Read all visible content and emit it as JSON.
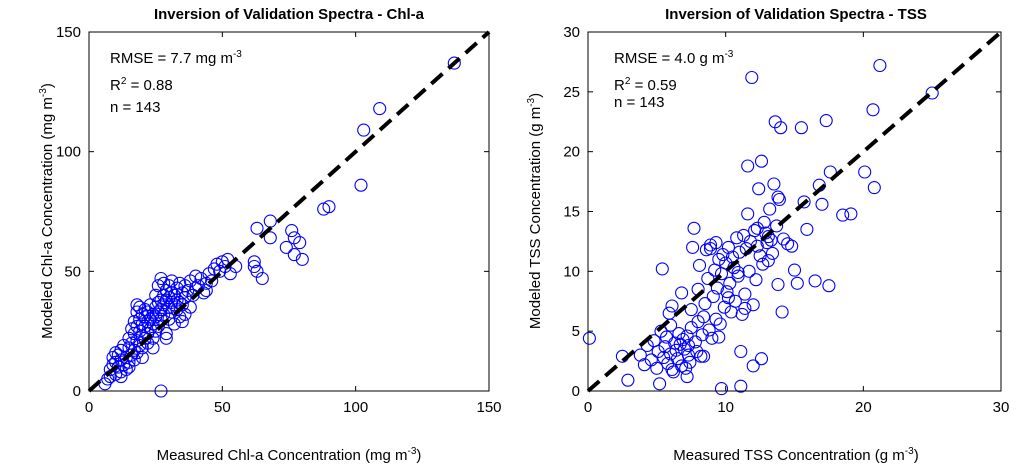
{
  "chart_data": [
    {
      "type": "scatter",
      "title": "Inversion of Validation Spectra - Chl-a",
      "xlabel": "Measured Chl-a Concentration (mg m",
      "xlabel_sup": "-3",
      "xlabel_end": ")",
      "ylabel": "Modeled Chl-a Concentration (mg m",
      "ylabel_sup": "-3",
      "ylabel_end": ")",
      "xlim": [
        0,
        150
      ],
      "ylim": [
        0,
        150
      ],
      "xticks": [
        0,
        50,
        100,
        150
      ],
      "yticks": [
        0,
        50,
        100,
        150
      ],
      "reference_line": [
        [
          0,
          0
        ],
        [
          150,
          150
        ]
      ],
      "stats": {
        "rmse": "RMSE = 7.7 mg m",
        "rmse_sup": "-3",
        "r2_prefix": "R",
        "r2_sup": "2",
        "r2_value": " = 0.88",
        "n": "n = 143"
      },
      "points": [
        [
          6,
          3
        ],
        [
          7,
          5
        ],
        [
          8,
          6
        ],
        [
          8,
          9
        ],
        [
          9,
          11
        ],
        [
          9,
          14
        ],
        [
          10,
          7
        ],
        [
          10,
          12
        ],
        [
          10,
          16
        ],
        [
          11,
          10
        ],
        [
          11,
          15
        ],
        [
          12,
          8
        ],
        [
          12,
          13
        ],
        [
          12,
          17
        ],
        [
          13,
          11
        ],
        [
          13,
          19
        ],
        [
          14,
          9
        ],
        [
          14,
          14
        ],
        [
          15,
          12
        ],
        [
          15,
          18
        ],
        [
          15,
          22
        ],
        [
          16,
          15
        ],
        [
          16,
          20
        ],
        [
          16,
          26
        ],
        [
          17,
          13
        ],
        [
          17,
          17
        ],
        [
          17,
          24
        ],
        [
          17,
          29
        ],
        [
          18,
          16
        ],
        [
          18,
          21
        ],
        [
          18,
          27
        ],
        [
          18,
          33
        ],
        [
          18,
          36
        ],
        [
          19,
          19
        ],
        [
          19,
          25
        ],
        [
          19,
          30
        ],
        [
          19,
          35
        ],
        [
          20,
          14
        ],
        [
          20,
          18
        ],
        [
          20,
          23
        ],
        [
          20,
          28
        ],
        [
          20,
          32
        ],
        [
          21,
          22
        ],
        [
          21,
          27
        ],
        [
          21,
          31
        ],
        [
          21,
          34
        ],
        [
          22,
          24
        ],
        [
          22,
          29
        ],
        [
          22,
          33
        ],
        [
          23,
          26
        ],
        [
          23,
          30
        ],
        [
          23,
          36
        ],
        [
          24,
          28
        ],
        [
          24,
          32
        ],
        [
          24,
          22
        ],
        [
          25,
          25
        ],
        [
          25,
          31
        ],
        [
          25,
          35
        ],
        [
          25,
          40
        ],
        [
          26,
          27
        ],
        [
          26,
          33
        ],
        [
          26,
          37
        ],
        [
          26,
          44
        ],
        [
          27,
          30
        ],
        [
          27,
          34
        ],
        [
          27,
          38
        ],
        [
          27,
          47
        ],
        [
          27,
          0
        ],
        [
          28,
          32
        ],
        [
          28,
          36
        ],
        [
          28,
          40
        ],
        [
          28,
          45
        ],
        [
          29,
          24
        ],
        [
          29,
          22
        ],
        [
          29,
          38
        ],
        [
          29,
          42
        ],
        [
          30,
          30
        ],
        [
          30,
          35
        ],
        [
          30,
          39
        ],
        [
          30,
          44
        ],
        [
          31,
          33
        ],
        [
          31,
          37
        ],
        [
          31,
          41
        ],
        [
          31,
          46
        ],
        [
          32,
          28
        ],
        [
          32,
          36
        ],
        [
          32,
          40
        ],
        [
          33,
          34
        ],
        [
          33,
          38
        ],
        [
          33,
          43
        ],
        [
          34,
          31
        ],
        [
          34,
          37
        ],
        [
          34,
          45
        ],
        [
          35,
          36
        ],
        [
          35,
          41
        ],
        [
          35,
          29
        ],
        [
          36,
          39
        ],
        [
          36,
          44
        ],
        [
          37,
          42
        ],
        [
          38,
          46
        ],
        [
          38,
          35
        ],
        [
          39,
          40
        ],
        [
          40,
          43
        ],
        [
          40,
          48
        ],
        [
          41,
          44
        ],
        [
          42,
          47
        ],
        [
          43,
          41
        ],
        [
          44,
          45
        ],
        [
          45,
          49
        ],
        [
          46,
          46
        ],
        [
          47,
          51
        ],
        [
          48,
          53
        ],
        [
          49,
          50
        ],
        [
          50,
          54
        ],
        [
          51,
          52
        ],
        [
          52,
          55
        ],
        [
          53,
          49
        ],
        [
          55,
          52
        ],
        [
          62,
          54
        ],
        [
          62,
          52
        ],
        [
          63,
          68
        ],
        [
          63,
          50
        ],
        [
          65,
          47
        ],
        [
          68,
          64
        ],
        [
          68,
          71
        ],
        [
          74,
          60
        ],
        [
          76,
          67
        ],
        [
          77,
          57
        ],
        [
          77,
          64
        ],
        [
          79,
          62
        ],
        [
          80,
          55
        ],
        [
          88,
          76
        ],
        [
          90,
          77
        ],
        [
          102,
          86
        ],
        [
          103,
          109
        ],
        [
          109,
          118
        ],
        [
          137,
          137
        ],
        [
          24,
          18
        ],
        [
          22,
          20
        ],
        [
          36,
          32
        ],
        [
          44,
          42
        ],
        [
          15,
          10
        ],
        [
          12,
          6
        ]
      ]
    },
    {
      "type": "scatter",
      "title": "Inversion of Validation Spectra - TSS",
      "xlabel": "Measured TSS Concentration (g m",
      "xlabel_sup": "-3",
      "xlabel_end": ")",
      "ylabel": "Modeled TSS Concentration (g m",
      "ylabel_sup": "-3",
      "ylabel_end": ")",
      "xlim": [
        0,
        30
      ],
      "ylim": [
        0,
        30
      ],
      "xticks": [
        0,
        10,
        20,
        30
      ],
      "yticks": [
        0,
        5,
        10,
        15,
        20,
        25,
        30
      ],
      "reference_line": [
        [
          0,
          0
        ],
        [
          30,
          30
        ]
      ],
      "stats": {
        "rmse": "RMSE = 4.0 g m",
        "rmse_sup": "-3",
        "r2_prefix": "R",
        "r2_sup": "2",
        "r2_value": " = 0.59",
        "n": "n = 143"
      },
      "points": [
        [
          0.1,
          4.4
        ],
        [
          2.5,
          2.9
        ],
        [
          2.9,
          0.9
        ],
        [
          3.8,
          3.0
        ],
        [
          4.1,
          2.2
        ],
        [
          4.3,
          3.8
        ],
        [
          4.6,
          2.6
        ],
        [
          4.8,
          4.2
        ],
        [
          5.0,
          1.9
        ],
        [
          5.1,
          3.3
        ],
        [
          5.2,
          0.6
        ],
        [
          5.3,
          5.0
        ],
        [
          5.4,
          10.2
        ],
        [
          5.5,
          2.8
        ],
        [
          5.6,
          3.7
        ],
        [
          5.7,
          4.5
        ],
        [
          5.8,
          2.3
        ],
        [
          5.9,
          6.5
        ],
        [
          6.0,
          3.1
        ],
        [
          6.0,
          5.5
        ],
        [
          6.1,
          7.1
        ],
        [
          6.2,
          1.6
        ],
        [
          6.3,
          4.0
        ],
        [
          6.4,
          3.4
        ],
        [
          6.5,
          2.7
        ],
        [
          6.6,
          4.8
        ],
        [
          6.7,
          3.9
        ],
        [
          6.8,
          2.1
        ],
        [
          6.9,
          4.3
        ],
        [
          7.0,
          3.5
        ],
        [
          7.1,
          1.9
        ],
        [
          7.2,
          4.6
        ],
        [
          7.3,
          3.0
        ],
        [
          7.4,
          2.4
        ],
        [
          7.5,
          6.8
        ],
        [
          7.5,
          5.3
        ],
        [
          7.6,
          12.0
        ],
        [
          7.7,
          13.6
        ],
        [
          7.8,
          4.1
        ],
        [
          7.9,
          3.3
        ],
        [
          8.0,
          8.5
        ],
        [
          8.0,
          5.8
        ],
        [
          8.1,
          10.5
        ],
        [
          8.2,
          2.9
        ],
        [
          8.3,
          4.7
        ],
        [
          8.4,
          6.2
        ],
        [
          8.5,
          7.3
        ],
        [
          8.6,
          11.8
        ],
        [
          8.7,
          9.4
        ],
        [
          8.8,
          5.1
        ],
        [
          8.9,
          12.2
        ],
        [
          9.0,
          4.4
        ],
        [
          9.1,
          7.9
        ],
        [
          9.2,
          10.1
        ],
        [
          9.3,
          6.0
        ],
        [
          9.3,
          12.4
        ],
        [
          9.4,
          8.6
        ],
        [
          9.5,
          11.0
        ],
        [
          9.6,
          5.6
        ],
        [
          9.7,
          9.8
        ],
        [
          9.7,
          0.2
        ],
        [
          9.8,
          11.4
        ],
        [
          9.9,
          7.0
        ],
        [
          10.0,
          10.7
        ],
        [
          10.1,
          8.3
        ],
        [
          10.2,
          12.0
        ],
        [
          10.3,
          9.0
        ],
        [
          10.4,
          6.6
        ],
        [
          10.5,
          11.2
        ],
        [
          10.6,
          10.3
        ],
        [
          10.7,
          7.5
        ],
        [
          10.8,
          12.8
        ],
        [
          10.9,
          9.6
        ],
        [
          11.0,
          11.6
        ],
        [
          11.1,
          3.3
        ],
        [
          11.1,
          0.4
        ],
        [
          11.2,
          6.4
        ],
        [
          11.3,
          13.0
        ],
        [
          11.4,
          8.1
        ],
        [
          11.5,
          11.9
        ],
        [
          11.6,
          14.8
        ],
        [
          11.7,
          10.0
        ],
        [
          11.8,
          12.5
        ],
        [
          11.9,
          26.2
        ],
        [
          12.0,
          7.2
        ],
        [
          12.0,
          2.1
        ],
        [
          12.1,
          13.4
        ],
        [
          12.2,
          9.3
        ],
        [
          12.3,
          12.1
        ],
        [
          12.4,
          16.9
        ],
        [
          12.5,
          11.3
        ],
        [
          12.6,
          19.2
        ],
        [
          12.7,
          10.6
        ],
        [
          12.8,
          14.1
        ],
        [
          12.9,
          13.2
        ],
        [
          13.0,
          12.4
        ],
        [
          13.1,
          10.9
        ],
        [
          13.2,
          15.2
        ],
        [
          13.3,
          12.6
        ],
        [
          13.4,
          11.5
        ],
        [
          13.5,
          17.3
        ],
        [
          13.6,
          22.5
        ],
        [
          13.7,
          13.8
        ],
        [
          13.8,
          8.9
        ],
        [
          13.9,
          16.0
        ],
        [
          14.0,
          22.0
        ],
        [
          14.1,
          6.6
        ],
        [
          14.2,
          12.7
        ],
        [
          14.5,
          12.3
        ],
        [
          14.8,
          12.1
        ],
        [
          15.0,
          10.1
        ],
        [
          15.2,
          9.0
        ],
        [
          15.5,
          22.0
        ],
        [
          15.7,
          15.8
        ],
        [
          15.9,
          13.5
        ],
        [
          16.5,
          9.2
        ],
        [
          16.8,
          17.2
        ],
        [
          17.0,
          15.6
        ],
        [
          17.3,
          22.6
        ],
        [
          17.5,
          8.8
        ],
        [
          17.6,
          18.3
        ],
        [
          18.5,
          14.7
        ],
        [
          19.1,
          14.8
        ],
        [
          20.1,
          18.3
        ],
        [
          20.7,
          23.5
        ],
        [
          20.8,
          17.0
        ],
        [
          21.2,
          27.2
        ],
        [
          25.0,
          24.9
        ],
        [
          6.1,
          1.8
        ],
        [
          7.2,
          1.2
        ],
        [
          8.4,
          2.9
        ],
        [
          11.6,
          18.8
        ],
        [
          12.3,
          13.6
        ],
        [
          13.1,
          12.9
        ],
        [
          9.5,
          4.5
        ],
        [
          6.8,
          8.2
        ],
        [
          12.6,
          2.7
        ],
        [
          10.9,
          9.9
        ],
        [
          8.9,
          11.9
        ],
        [
          11.4,
          6.9
        ],
        [
          13.8,
          16.2
        ],
        [
          7.3,
          3.8
        ],
        [
          10.2,
          7.8
        ]
      ]
    }
  ]
}
